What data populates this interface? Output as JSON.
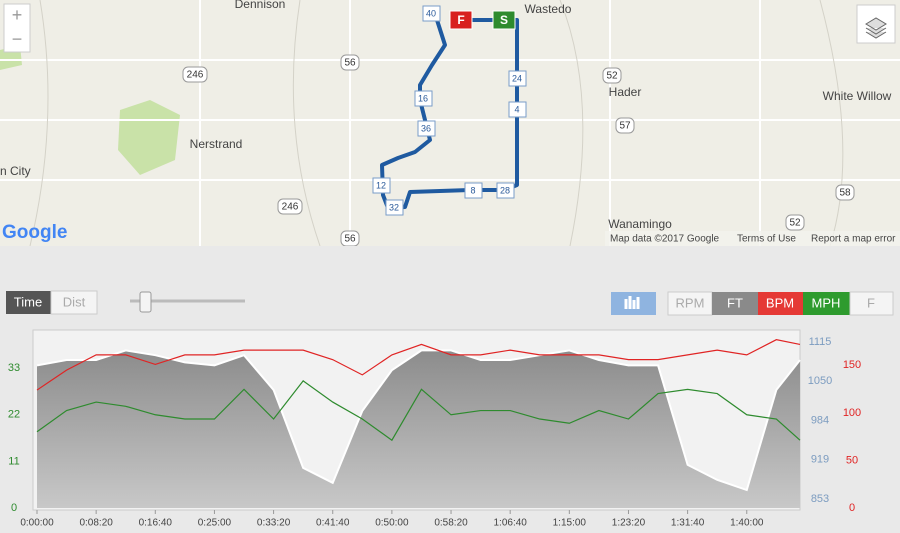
{
  "map": {
    "places": [
      "Dennison",
      "Wastedo",
      "Hader",
      "White Willow",
      "Nerstrand",
      "n City",
      "Wanamingo"
    ],
    "shields": [
      "246",
      "56",
      "52",
      "57",
      "246",
      "56",
      "58",
      "52"
    ],
    "route_markers": [
      "40",
      "F",
      "S",
      "24",
      "4",
      "16",
      "36",
      "12",
      "32",
      "8",
      "28"
    ],
    "zoom": [
      "+",
      "−"
    ],
    "logo": "Google",
    "attribution": [
      "Map data ©2017 Google",
      "Terms of Use",
      "Report a map error"
    ]
  },
  "controls": {
    "mode": [
      "Time",
      "Dist"
    ],
    "inactive_metrics": [
      "RPM",
      "F"
    ]
  },
  "chart_data": {
    "type": "line",
    "x": [
      0,
      250,
      500,
      750,
      1000,
      1250,
      1500,
      1750,
      2000,
      2250,
      2500,
      2750,
      3000,
      3250,
      3500,
      3750,
      4000,
      4250,
      4500,
      4750,
      5000,
      5250,
      5500,
      5750,
      6000,
      6250,
      6450
    ],
    "xlim": [
      0,
      6450
    ],
    "xticks": [
      {
        "value": 0,
        "label": "0:00:00"
      },
      {
        "value": 500,
        "label": "0:08:20"
      },
      {
        "value": 1000,
        "label": "0:16:40"
      },
      {
        "value": 1500,
        "label": "0:25:00"
      },
      {
        "value": 2000,
        "label": "0:33:20"
      },
      {
        "value": 2500,
        "label": "0:41:40"
      },
      {
        "value": 3000,
        "label": "0:50:00"
      },
      {
        "value": 3500,
        "label": "0:58:20"
      },
      {
        "value": 4000,
        "label": "1:06:40"
      },
      {
        "value": 4500,
        "label": "1:15:00"
      },
      {
        "value": 5000,
        "label": "1:23:20"
      },
      {
        "value": 5500,
        "label": "1:31:40"
      },
      {
        "value": 6000,
        "label": "1:40:00"
      }
    ],
    "ylim": [
      0,
      41.3
    ],
    "yticks": [
      0,
      11,
      22,
      33
    ],
    "y2lim": [
      838,
      1130
    ],
    "y2ticks": [
      853,
      919,
      984,
      1050,
      1115
    ],
    "y3lim": [
      0,
      184
    ],
    "y3ticks": [
      0,
      50,
      100,
      150
    ],
    "series": [
      {
        "name": "FT",
        "color": "#9a9a9a",
        "axis": "y2",
        "values": [
          1076,
          1085,
          1085,
          1101,
          1093,
          1081,
          1076,
          1093,
          1035,
          905,
          880,
          1000,
          1068,
          1101,
          1101,
          1085,
          1085,
          1093,
          1101,
          1085,
          1076,
          1076,
          910,
          885,
          868,
          1035,
          1085
        ]
      },
      {
        "name": "BPM",
        "color": "#e02424",
        "axis": "y3",
        "values": [
          124,
          145,
          161,
          161,
          151,
          161,
          161,
          166,
          166,
          166,
          156,
          140,
          161,
          172,
          161,
          161,
          166,
          161,
          161,
          161,
          156,
          156,
          161,
          166,
          161,
          177,
          172
        ]
      },
      {
        "name": "MPH",
        "color": "#2e8b2e",
        "axis": "y",
        "values": [
          18,
          23,
          25,
          24,
          22,
          21,
          21,
          28,
          21,
          30,
          25,
          21,
          16,
          28,
          22,
          23,
          23,
          21,
          20,
          23,
          21,
          27,
          28,
          27,
          22,
          21,
          16
        ]
      }
    ]
  }
}
